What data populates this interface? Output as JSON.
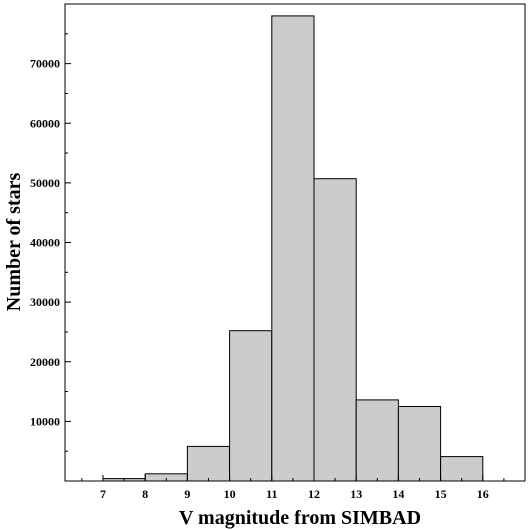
{
  "chart_data": {
    "type": "bar",
    "title": "",
    "xlabel": "V magnitude from SIMBAD",
    "ylabel": "Number of stars",
    "x_ticks": [
      "7",
      "8",
      "9",
      "10",
      "11",
      "12",
      "13",
      "14",
      "15",
      "16"
    ],
    "y_ticks": [
      "10000",
      "20000",
      "30000",
      "40000",
      "50000",
      "60000",
      "70000"
    ],
    "xlim": [
      6.1,
      17.0
    ],
    "ylim": [
      0,
      80000
    ],
    "bins": [
      {
        "x0": 7.0,
        "x1": 8.0,
        "value": 400
      },
      {
        "x0": 8.0,
        "x1": 9.0,
        "value": 1200
      },
      {
        "x0": 9.0,
        "x1": 10.0,
        "value": 5800
      },
      {
        "x0": 10.0,
        "x1": 11.0,
        "value": 25200
      },
      {
        "x0": 11.0,
        "x1": 12.0,
        "value": 78000
      },
      {
        "x0": 12.0,
        "x1": 13.0,
        "value": 50700
      },
      {
        "x0": 13.0,
        "x1": 14.0,
        "value": 13600
      },
      {
        "x0": 14.0,
        "x1": 15.0,
        "value": 12500
      },
      {
        "x0": 15.0,
        "x1": 16.0,
        "value": 4100
      }
    ],
    "bar_color": "#cccccc",
    "bar_edge_color": "#000000",
    "grid": false,
    "minor_ticks": true
  }
}
